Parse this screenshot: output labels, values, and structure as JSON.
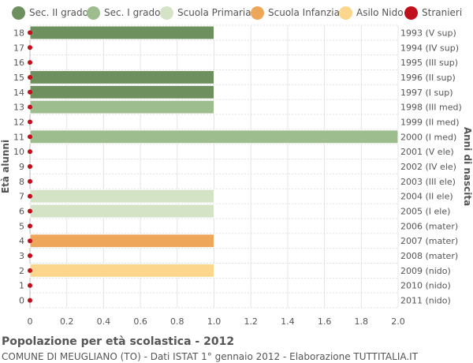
{
  "chart_data": {
    "type": "bar",
    "orientation": "horizontal",
    "ylabel_left": "Età alunni",
    "ylabel_right": "Anni di nascita",
    "xlim": [
      0,
      2.0
    ],
    "x_ticks": [
      "0",
      "0.2",
      "0.4",
      "0.6",
      "0.8",
      "1.0",
      "1.2",
      "1.4",
      "1.6",
      "1.8",
      "2.0"
    ],
    "grid": true,
    "legend_position": "top",
    "legend": [
      {
        "name": "Sec. II grado",
        "color": "#6e8f5e"
      },
      {
        "name": "Sec. I grado",
        "color": "#9ebd8e"
      },
      {
        "name": "Scuola Primaria",
        "color": "#d4e3c6"
      },
      {
        "name": "Scuola Infanzia",
        "color": "#eea75a"
      },
      {
        "name": "Asilo Nido",
        "color": "#fcd68c"
      },
      {
        "name": "Stranieri",
        "color": "#c0101c"
      }
    ],
    "rows": [
      {
        "age": "18",
        "birth": "1993 (V sup)",
        "value": 1,
        "category": 0,
        "stranieri": 0
      },
      {
        "age": "17",
        "birth": "1994 (IV sup)",
        "value": 0,
        "category": 0,
        "stranieri": 0
      },
      {
        "age": "16",
        "birth": "1995 (III sup)",
        "value": 0,
        "category": 0,
        "stranieri": 0
      },
      {
        "age": "15",
        "birth": "1996 (II sup)",
        "value": 1,
        "category": 0,
        "stranieri": 0
      },
      {
        "age": "14",
        "birth": "1997 (I sup)",
        "value": 1,
        "category": 0,
        "stranieri": 0
      },
      {
        "age": "13",
        "birth": "1998 (III med)",
        "value": 1,
        "category": 1,
        "stranieri": 0
      },
      {
        "age": "12",
        "birth": "1999 (II med)",
        "value": 0,
        "category": 1,
        "stranieri": 0
      },
      {
        "age": "11",
        "birth": "2000 (I med)",
        "value": 2,
        "category": 1,
        "stranieri": 0
      },
      {
        "age": "10",
        "birth": "2001 (V ele)",
        "value": 0,
        "category": 2,
        "stranieri": 0
      },
      {
        "age": "9",
        "birth": "2002 (IV ele)",
        "value": 0,
        "category": 2,
        "stranieri": 0
      },
      {
        "age": "8",
        "birth": "2003 (III ele)",
        "value": 0,
        "category": 2,
        "stranieri": 0
      },
      {
        "age": "7",
        "birth": "2004 (II ele)",
        "value": 1,
        "category": 2,
        "stranieri": 0
      },
      {
        "age": "6",
        "birth": "2005 (I ele)",
        "value": 1,
        "category": 2,
        "stranieri": 0
      },
      {
        "age": "5",
        "birth": "2006 (mater)",
        "value": 0,
        "category": 3,
        "stranieri": 0
      },
      {
        "age": "4",
        "birth": "2007 (mater)",
        "value": 1,
        "category": 3,
        "stranieri": 0
      },
      {
        "age": "3",
        "birth": "2008 (mater)",
        "value": 0,
        "category": 3,
        "stranieri": 0
      },
      {
        "age": "2",
        "birth": "2009 (nido)",
        "value": 1,
        "category": 4,
        "stranieri": 0
      },
      {
        "age": "1",
        "birth": "2010 (nido)",
        "value": 0,
        "category": 4,
        "stranieri": 0
      },
      {
        "age": "0",
        "birth": "2011 (nido)",
        "value": 0,
        "category": 4,
        "stranieri": 0
      }
    ]
  },
  "footer": {
    "title": "Popolazione per età scolastica - 2012",
    "subtitle": "COMUNE DI MEUGLIANO (TO) - Dati ISTAT 1° gennaio 2012 - Elaborazione TUTTITALIA.IT"
  }
}
